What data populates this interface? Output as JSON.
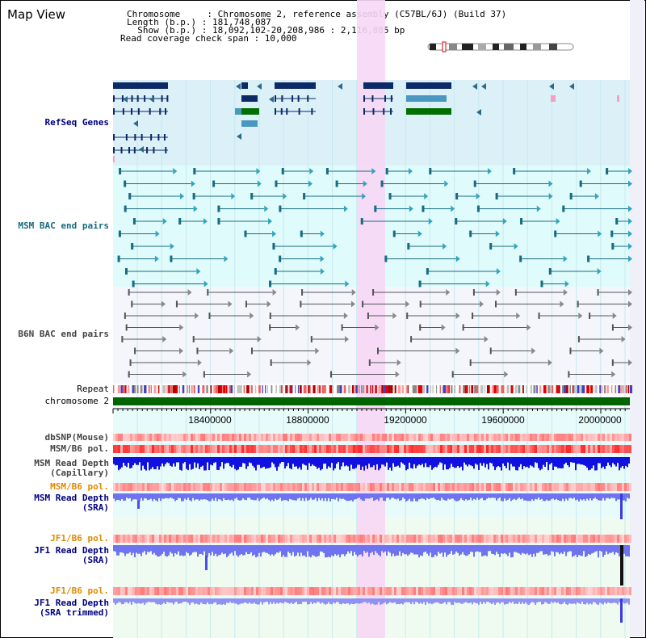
{
  "header": {
    "title": "Map View",
    "chromosome_line": "Chromosome     : Chromosome 2, reference assembly (C57BL/6J) (Build 37)",
    "length_line": "Length (b.p.) : 181,748,087",
    "show_line": "  Show (b.p.) : 18,092,102-20,208,986 : 2,116,885 bp",
    "coverage_line": "Read coverage check span : 10,000"
  },
  "tracks": {
    "refseq": "RefSeq Genes",
    "msm_bac": "MSM BAC end pairs",
    "b6n_bac": "B6N BAC end pairs",
    "repeat": "Repeat",
    "chromosome": "chromosome 2",
    "dbsnp": "dbSNP(Mouse)",
    "msm_b6_pol_a": "MSM/B6 pol.",
    "msm_read_depth_cap": "MSM Read Depth\n(Capillary)",
    "msm_b6_pol_b": "MSM/B6 pol.",
    "msm_read_depth_sra": "MSM Read Depth\n(SRA)",
    "jf1_b6_pol_a": "JF1/B6 pol.",
    "jf1_read_depth_sra": "JF1 Read Depth\n(SRA)",
    "jf1_b6_pol_b": "JF1/B6 pol.",
    "jf1_read_depth_trim": "JF1 Read Depth\n(SRA trimmed)"
  },
  "axis": {
    "ticks": [
      "18400000",
      "18800000",
      "19200000",
      "19600000",
      "20000000"
    ]
  },
  "colors": {
    "refseq_bg": "#dcf0f8",
    "msm_bg": "#e0fbfb",
    "b6n_bg": "#f4f6fb",
    "highlight": "#f7d7f5",
    "chromosome_bar": "#006400",
    "gene_dark": "#0b2a66",
    "gene_mid": "#4a97bf",
    "gene_green": "#006f00",
    "msm_pair": "#176b82",
    "b6n_pair": "#555555",
    "depth_blue": "#1010e0",
    "depth_light": "#6f73f0",
    "pol_red": "#f03030",
    "label_navy": "#000080",
    "label_orange": "#e08a00"
  }
}
